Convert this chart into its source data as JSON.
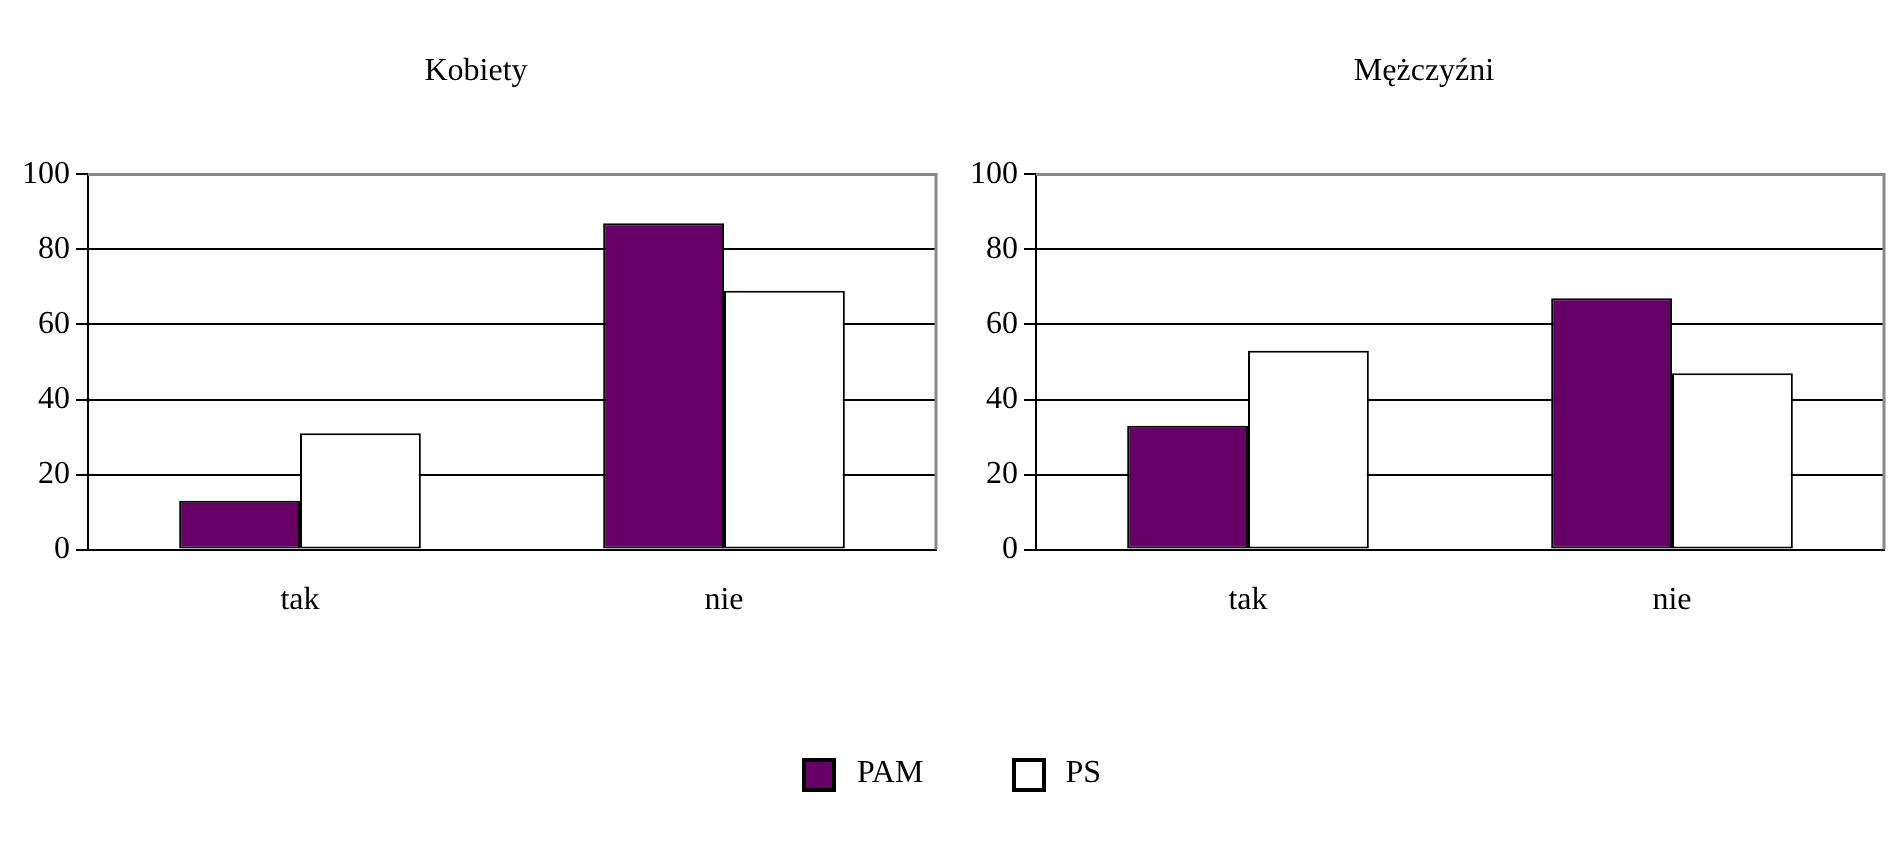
{
  "chart_data": [
    {
      "type": "bar",
      "title": "Kobiety",
      "categories": [
        "tak",
        "nie"
      ],
      "series": [
        {
          "name": "PAM",
          "color": "#660066",
          "values": [
            13,
            87
          ]
        },
        {
          "name": "PS",
          "color": "#ffffff",
          "values": [
            31,
            69
          ]
        }
      ],
      "ylim": [
        0,
        100
      ],
      "yticks": [
        0,
        20,
        40,
        60,
        80,
        100
      ],
      "grid": "y",
      "legend": "bottom"
    },
    {
      "type": "bar",
      "title": "Mężczyźni",
      "categories": [
        "tak",
        "nie"
      ],
      "series": [
        {
          "color": "#660066",
          "values": [
            33,
            67
          ]
        },
        {
          "color": "#ffffff",
          "values": [
            53,
            47
          ]
        }
      ],
      "ylim": [
        0,
        100
      ],
      "yticks": [
        0,
        20,
        40,
        60,
        80,
        100
      ],
      "grid": "y"
    }
  ]
}
